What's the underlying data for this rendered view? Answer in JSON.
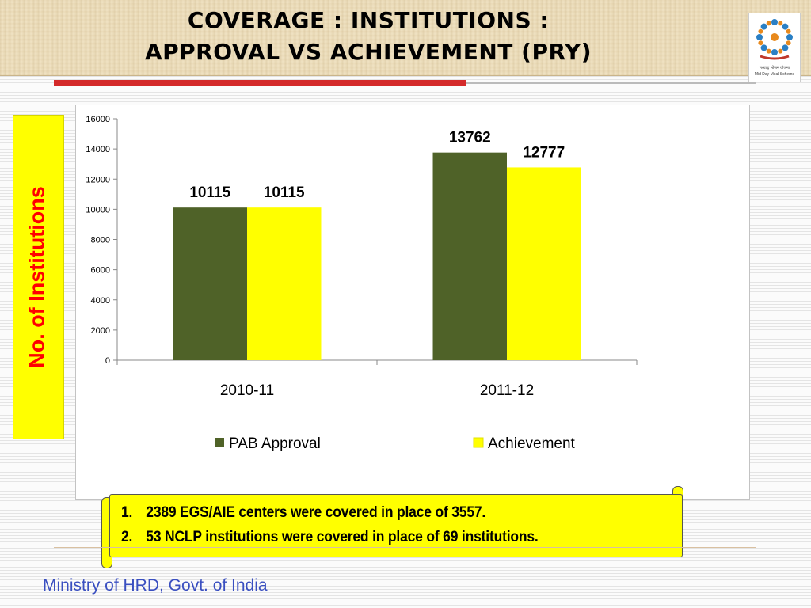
{
  "slide": {
    "title_line1": "COVERAGE : INSTITUTIONS :",
    "title_line2": "APPROVAL VS ACHIEVEMENT (PRY)",
    "footer": "Ministry of HRD, Govt. of India",
    "logo_caption_1": "मध्याह्न भोजन योजना",
    "logo_caption_2": "Mid Day Meal Scheme"
  },
  "notes": [
    {
      "number": "1.",
      "text": "2389 EGS/AIE centers were covered in place of 3557."
    },
    {
      "number": "2.",
      "text": "53 NCLP institutions were covered in place of 69 institutions."
    }
  ],
  "chart_data": {
    "type": "bar",
    "title": "",
    "xlabel": "",
    "ylabel": "No. of Institutions",
    "categories": [
      "2010-11",
      "2011-12"
    ],
    "series": [
      {
        "name": "PAB Approval",
        "values": [
          10115,
          13762
        ],
        "color": "#4f6228"
      },
      {
        "name": "Achievement",
        "values": [
          10115,
          12777
        ],
        "color": "#ffff00"
      }
    ],
    "ylim": [
      0,
      16000
    ],
    "yticks": [
      0,
      2000,
      4000,
      6000,
      8000,
      10000,
      12000,
      14000,
      16000
    ],
    "data_labels": true,
    "grid": false,
    "legend_position": "bottom"
  },
  "colors": {
    "title_bar_red": "#d42a2a",
    "ylabel_background": "#ffff00",
    "ylabel_text": "#ff0000",
    "notes_background": "#ffff00",
    "footer_text": "#3a4fc0"
  }
}
